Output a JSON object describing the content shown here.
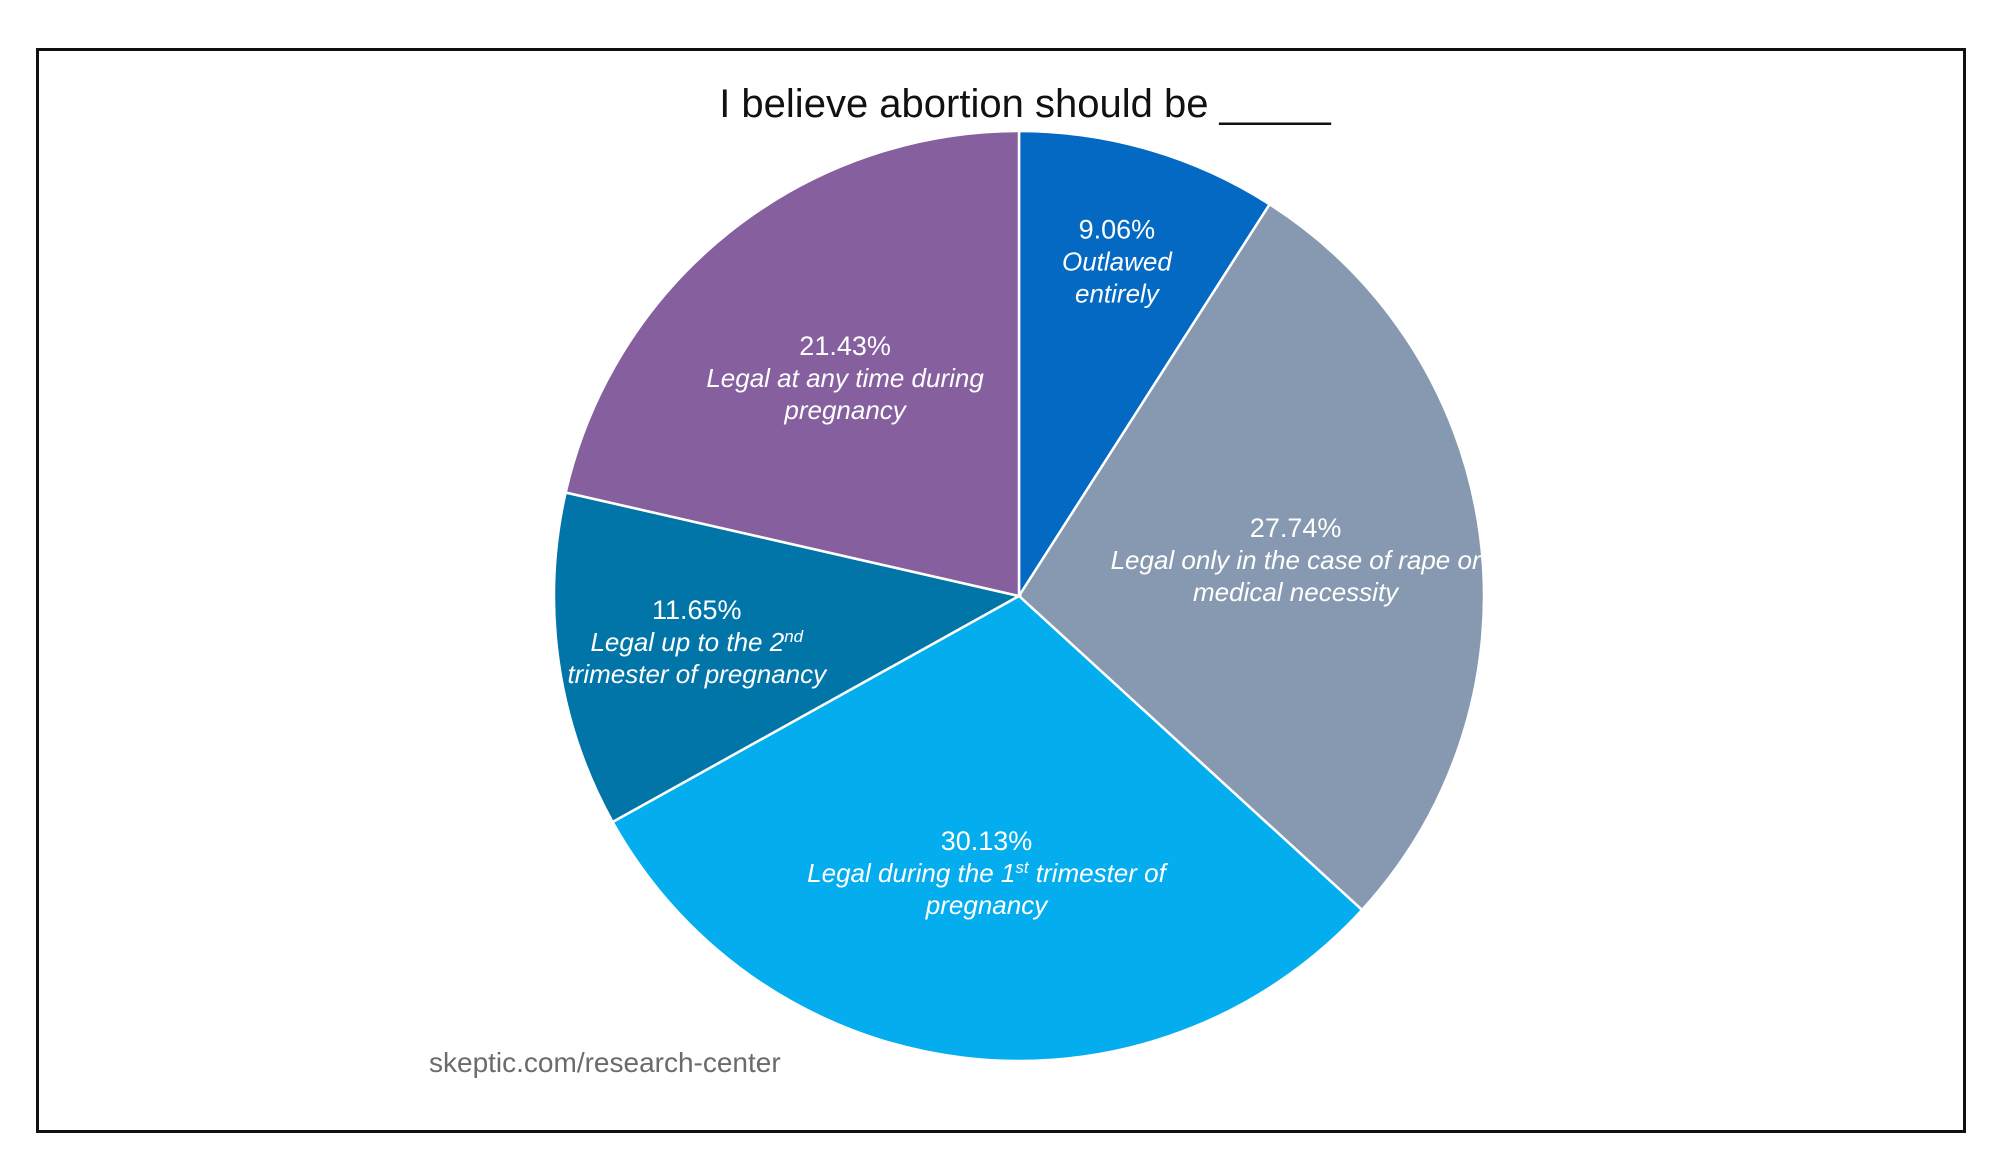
{
  "chart_data": {
    "type": "pie",
    "title": "I believe abortion should be _____",
    "source": "skeptic.com/research-center",
    "slices": [
      {
        "value": 9.06,
        "value_label": "9.06%",
        "label_lines": [
          [
            {
              "t": "Outlawed"
            }
          ],
          [
            {
              "t": "entirely"
            }
          ]
        ],
        "color": "#0369c3"
      },
      {
        "value": 27.74,
        "value_label": "27.74%",
        "label_lines": [
          [
            {
              "t": "Legal only in the case of rape or"
            }
          ],
          [
            {
              "t": "medical necessity"
            }
          ]
        ],
        "color": "#8799b1"
      },
      {
        "value": 30.13,
        "value_label": "30.13%",
        "label_lines": [
          [
            {
              "t": "Legal during the 1"
            },
            {
              "t": "st",
              "sup": true
            },
            {
              "t": " trimester of"
            }
          ],
          [
            {
              "t": "pregnancy"
            }
          ]
        ],
        "color": "#03adee"
      },
      {
        "value": 11.65,
        "value_label": "11.65%",
        "label_lines": [
          [
            {
              "t": "Legal up to the 2"
            },
            {
              "t": "nd",
              "sup": true
            }
          ],
          [
            {
              "t": "trimester of pregnancy"
            }
          ]
        ],
        "color": "#0275a8"
      },
      {
        "value": 21.43,
        "value_label": "21.43%",
        "label_lines": [
          [
            {
              "t": "Legal at any time during"
            }
          ],
          [
            {
              "t": "pregnancy"
            }
          ]
        ],
        "color": "#865f9f"
      }
    ]
  }
}
